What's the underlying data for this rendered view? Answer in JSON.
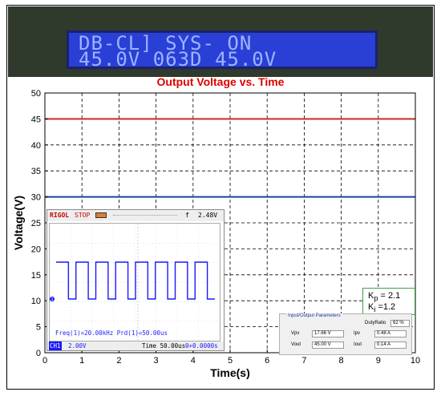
{
  "lcd": {
    "line1": "DB-CL] SYS- ON",
    "line2": "45.0V 063D 45.0V"
  },
  "chart_data": {
    "type": "line",
    "title": "Output Voltage vs. Time",
    "xlabel": "Time(s)",
    "ylabel": "Voltage(V)",
    "xlim": [
      0,
      10
    ],
    "ylim": [
      0,
      50
    ],
    "x_ticks": [
      "0",
      "1",
      "2",
      "3",
      "4",
      "5",
      "6",
      "7",
      "8",
      "9",
      "10"
    ],
    "y_ticks": [
      "0",
      "5",
      "10",
      "15",
      "20",
      "25",
      "30",
      "35",
      "40",
      "45",
      "50"
    ],
    "grid": true,
    "grid_style": "dashed",
    "series": [
      {
        "color": "#cc2a2a",
        "x": [
          0,
          10
        ],
        "y": [
          45,
          45
        ]
      },
      {
        "color": "#1f3fa6",
        "x": [
          0,
          10
        ],
        "y": [
          30,
          30
        ]
      }
    ],
    "colors": {
      "title": "#e00000",
      "lcd_background": "#2a3fd6",
      "gain_border": "#43a047"
    }
  },
  "scope": {
    "brand": "RIGOL",
    "state": "STOP",
    "trigger_icon": "f",
    "trigger_level": "2.48V",
    "channel_marker": "1",
    "freq_readout": "Freq(1)=20.00kHz  Prd(1)=50.00us",
    "channel_label": "CH1",
    "volts_per_div": "2.00V",
    "timebase": "Time 50.00us",
    "time_offset": "0+0.0000s",
    "waveform": {
      "type": "square",
      "high": 1,
      "low": 0,
      "cycles": 8
    }
  },
  "gains": {
    "kp_sub": "p",
    "kp_value": "= 2.1",
    "ki_sub": "i",
    "ki_value": "=1.2"
  },
  "params": {
    "title": "Input/Output Parameters",
    "duty_label": "DutyRatio",
    "duty_value": "62 %",
    "vpv_label": "Vpv",
    "vpv_value": "17.66 V",
    "ipv_label": "Ipv",
    "ipv_value": "0.48 A",
    "vout_label": "Vout",
    "vout_value": "45.00 V",
    "iout_label": "Iout",
    "iout_value": "0.14 A"
  }
}
